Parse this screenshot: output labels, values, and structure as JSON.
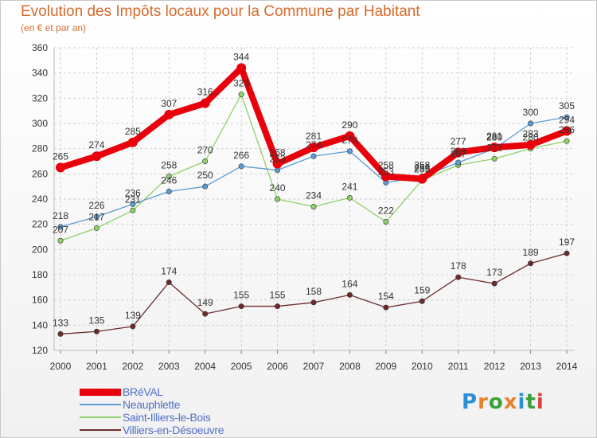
{
  "title": "Evolution des Impôts locaux pour la Commune par Habitant",
  "subtitle": "(en € et par an)",
  "logo": {
    "text": "Proxiti",
    "letter_colors": [
      "#2a8fd6",
      "#e8812c",
      "#3aa13a",
      "#e8812c",
      "#2a8fd6",
      "#3aa13a",
      "#d94040"
    ]
  },
  "chart_data": {
    "type": "line",
    "title": "Evolution des Impôts locaux pour la Commune par Habitant",
    "subtitle": "(en € et par an)",
    "xlabel": "",
    "ylabel": "",
    "x": [
      2000,
      2001,
      2002,
      2003,
      2004,
      2005,
      2006,
      2007,
      2008,
      2009,
      2010,
      2011,
      2012,
      2013,
      2014
    ],
    "x_tick_labels": [
      "2000",
      "2001",
      "2002",
      "2003",
      "2004",
      "2005",
      "2006",
      "2007",
      "2008",
      "2009",
      "2010",
      "2011",
      "2012",
      "2013",
      "2014"
    ],
    "ylim": [
      120,
      360
    ],
    "y_ticks": [
      120,
      140,
      160,
      180,
      200,
      220,
      240,
      260,
      280,
      300,
      320,
      340,
      360
    ],
    "grid": true,
    "legend_position": "bottom-left",
    "series": [
      {
        "name": "BRéVAL",
        "color": "#e8000b",
        "values": [
          265,
          274,
          285,
          307,
          316,
          344,
          268,
          281,
          290,
          258,
          256,
          277,
          281,
          283,
          294
        ],
        "labels": [
          "265",
          "274",
          "285",
          "307",
          "316",
          "344",
          "268",
          "281",
          "290",
          "258",
          "256",
          "277",
          "281",
          "283",
          "294"
        ]
      },
      {
        "name": "Neauphlette",
        "color": "#5b9bd5",
        "values": [
          218,
          226,
          236,
          246,
          250,
          266,
          263,
          274,
          278,
          253,
          258,
          269,
          280,
          300,
          305
        ],
        "labels": [
          "218",
          "226",
          "236",
          "246",
          "250",
          "266",
          "263",
          "274",
          "278",
          "253",
          "258",
          "269",
          "280",
          "300",
          "305"
        ]
      },
      {
        "name": "Saint-Illiers-le-Bois",
        "color": "#8fd16a",
        "values": [
          207,
          217,
          231,
          258,
          270,
          323,
          240,
          234,
          241,
          222,
          255,
          267,
          272,
          280,
          286
        ],
        "labels": [
          "207",
          "217",
          "231",
          "258",
          "270",
          "323",
          "240",
          "234",
          "241",
          "222",
          "255",
          "267",
          "272",
          "280",
          "286"
        ]
      },
      {
        "name": "Villiers-en-Désoeuvre",
        "color": "#6b2b2b",
        "values": [
          133,
          135,
          139,
          174,
          149,
          155,
          155,
          158,
          164,
          154,
          159,
          178,
          173,
          189,
          197
        ],
        "labels": [
          "133",
          "135",
          "139",
          "174",
          "149",
          "155",
          "155",
          "158",
          "164",
          "154",
          "159",
          "178",
          "173",
          "189",
          "197"
        ]
      }
    ]
  }
}
